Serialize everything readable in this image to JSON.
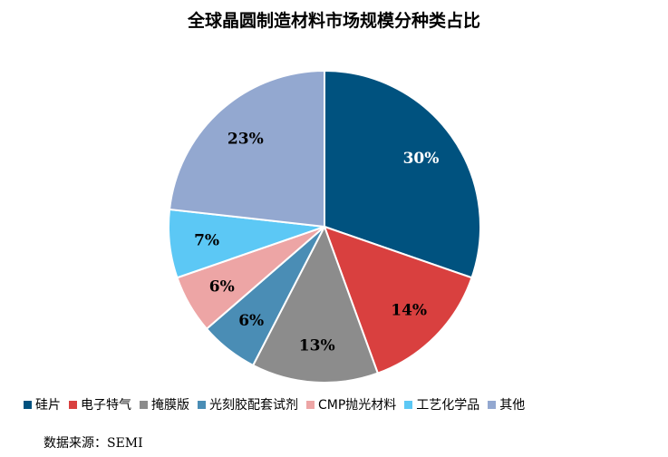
{
  "chart_data": {
    "type": "pie",
    "title": "全球晶圆制造材料市场规模分种类占比",
    "slices": [
      {
        "label": "硅片",
        "value": 30,
        "display": "30%",
        "color": "#00527F"
      },
      {
        "label": "电子特气",
        "value": 14,
        "display": "14%",
        "color": "#D9403F"
      },
      {
        "label": "掩膜版",
        "value": 13,
        "display": "13%",
        "color": "#8C8C8C"
      },
      {
        "label": "光刻胶配套试剂",
        "value": 6,
        "display": "6%",
        "color": "#4A8DB5"
      },
      {
        "label": "CMP抛光材料",
        "value": 6,
        "display": "6%",
        "color": "#EDA5A5"
      },
      {
        "label": "工艺化学品",
        "value": 7,
        "display": "7%",
        "color": "#5CC8F5"
      },
      {
        "label": "其他",
        "value": 23,
        "display": "23%",
        "color": "#93A8D0"
      }
    ],
    "legend_position": "bottom"
  },
  "source": "数据来源：SEMI"
}
